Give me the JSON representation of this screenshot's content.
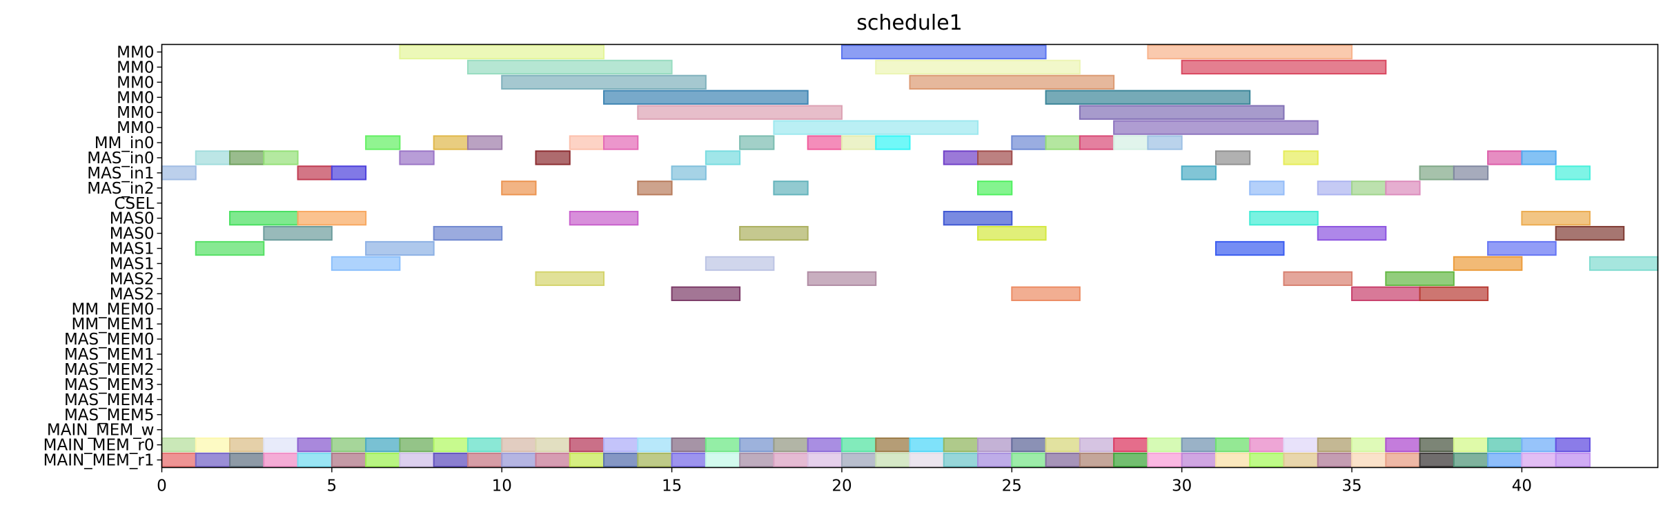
{
  "chart_data": {
    "type": "gantt",
    "title": "schedule1",
    "xlabel": "",
    "ylabel": "",
    "xlim": [
      0,
      44
    ],
    "xticks": [
      0,
      5,
      10,
      15,
      20,
      25,
      30,
      35,
      40
    ],
    "grid": false,
    "rows": [
      "MM0",
      "MM0",
      "MM0",
      "MM0",
      "MM0",
      "MM0",
      "MM_in0",
      "MAS_in0",
      "MAS_in1",
      "MAS_in2",
      "CSEL",
      "MAS0",
      "MAS0",
      "MAS1",
      "MAS1",
      "MAS2",
      "MAS2",
      "MM_MEM0",
      "MM_MEM1",
      "MAS_MEM0",
      "MAS_MEM1",
      "MAS_MEM2",
      "MAS_MEM3",
      "MAS_MEM4",
      "MAS_MEM5",
      "MAIN_MEM_w",
      "MAIN_MEM_r0",
      "MAIN_MEM_r1"
    ],
    "tasks": [
      {
        "row": 0,
        "start": 7,
        "end": 13,
        "color": "#e4f59a"
      },
      {
        "row": 0,
        "start": 20,
        "end": 26,
        "color": "#5b75f0"
      },
      {
        "row": 0,
        "start": 29,
        "end": 35,
        "color": "#f8b48c"
      },
      {
        "row": 1,
        "start": 9,
        "end": 15,
        "color": "#97dcc0"
      },
      {
        "row": 1,
        "start": 21,
        "end": 27,
        "color": "#ecf5b4"
      },
      {
        "row": 1,
        "start": 30,
        "end": 36,
        "color": "#d94961"
      },
      {
        "row": 2,
        "start": 10,
        "end": 16,
        "color": "#7fb1bc"
      },
      {
        "row": 2,
        "start": 22,
        "end": 28,
        "color": "#dc9a72"
      },
      {
        "row": 3,
        "start": 13,
        "end": 19,
        "color": "#3f85b3"
      },
      {
        "row": 3,
        "start": 26,
        "end": 32,
        "color": "#3c8699"
      },
      {
        "row": 4,
        "start": 14,
        "end": 20,
        "color": "#dda2b4"
      },
      {
        "row": 4,
        "start": 27,
        "end": 33,
        "color": "#8270b6"
      },
      {
        "row": 5,
        "start": 18,
        "end": 24,
        "color": "#9de8ef"
      },
      {
        "row": 5,
        "start": 28,
        "end": 34,
        "color": "#8d74bf"
      },
      {
        "row": 6,
        "start": 6,
        "end": 7,
        "color": "#63f063"
      },
      {
        "row": 6,
        "start": 8,
        "end": 9,
        "color": "#e0b84a"
      },
      {
        "row": 6,
        "start": 9,
        "end": 10,
        "color": "#9c7aa8"
      },
      {
        "row": 6,
        "start": 12,
        "end": 13,
        "color": "#fcc0ac"
      },
      {
        "row": 6,
        "start": 13,
        "end": 14,
        "color": "#e46ab6"
      },
      {
        "row": 6,
        "start": 17,
        "end": 18,
        "color": "#7abcb0"
      },
      {
        "row": 6,
        "start": 19,
        "end": 20,
        "color": "#f05c9c"
      },
      {
        "row": 6,
        "start": 20,
        "end": 21,
        "color": "#e4ecb0"
      },
      {
        "row": 6,
        "start": 21,
        "end": 22,
        "color": "#34f5f5"
      },
      {
        "row": 6,
        "start": 25,
        "end": 26,
        "color": "#6f8ad4"
      },
      {
        "row": 6,
        "start": 26,
        "end": 27,
        "color": "#94dc78"
      },
      {
        "row": 6,
        "start": 27,
        "end": 28,
        "color": "#d94a76"
      },
      {
        "row": 6,
        "start": 28,
        "end": 29,
        "color": "#d4f0e4"
      },
      {
        "row": 6,
        "start": 29,
        "end": 30,
        "color": "#9cc0e4"
      },
      {
        "row": 7,
        "start": 1,
        "end": 2,
        "color": "#a0dcdc"
      },
      {
        "row": 7,
        "start": 2,
        "end": 3,
        "color": "#6ea05c"
      },
      {
        "row": 7,
        "start": 3,
        "end": 4,
        "color": "#94e078"
      },
      {
        "row": 7,
        "start": 7,
        "end": 8,
        "color": "#9a74c6"
      },
      {
        "row": 7,
        "start": 11,
        "end": 12,
        "color": "#8c2c30"
      },
      {
        "row": 7,
        "start": 16,
        "end": 17,
        "color": "#78dce0"
      },
      {
        "row": 7,
        "start": 23,
        "end": 24,
        "color": "#7040c8"
      },
      {
        "row": 7,
        "start": 24,
        "end": 25,
        "color": "#a04c4c"
      },
      {
        "row": 7,
        "start": 31,
        "end": 32,
        "color": "#909090"
      },
      {
        "row": 7,
        "start": 33,
        "end": 34,
        "color": "#e6ec58"
      },
      {
        "row": 7,
        "start": 39,
        "end": 40,
        "color": "#dc5ca8"
      },
      {
        "row": 7,
        "start": 40,
        "end": 41,
        "color": "#50a8f0"
      },
      {
        "row": 8,
        "start": 0,
        "end": 1,
        "color": "#a0bce4"
      },
      {
        "row": 8,
        "start": 4,
        "end": 5,
        "color": "#c03c52"
      },
      {
        "row": 8,
        "start": 5,
        "end": 6,
        "color": "#4c40dc"
      },
      {
        "row": 8,
        "start": 15,
        "end": 16,
        "color": "#80c0dc"
      },
      {
        "row": 8,
        "start": 30,
        "end": 31,
        "color": "#4cacc4"
      },
      {
        "row": 8,
        "start": 37,
        "end": 38,
        "color": "#80a888"
      },
      {
        "row": 8,
        "start": 38,
        "end": 39,
        "color": "#8088a0"
      },
      {
        "row": 8,
        "start": 41,
        "end": 42,
        "color": "#48f0dc"
      },
      {
        "row": 9,
        "start": 10,
        "end": 11,
        "color": "#ec9450"
      },
      {
        "row": 9,
        "start": 14,
        "end": 15,
        "color": "#b87c5c"
      },
      {
        "row": 9,
        "start": 18,
        "end": 19,
        "color": "#64b4bc"
      },
      {
        "row": 9,
        "start": 24,
        "end": 25,
        "color": "#50f060"
      },
      {
        "row": 9,
        "start": 32,
        "end": 33,
        "color": "#94bcf8"
      },
      {
        "row": 9,
        "start": 34,
        "end": 35,
        "color": "#acb4f0"
      },
      {
        "row": 9,
        "start": 35,
        "end": 36,
        "color": "#a0d48c"
      },
      {
        "row": 9,
        "start": 36,
        "end": 37,
        "color": "#dc8cbc"
      },
      {
        "row": 11,
        "start": 2,
        "end": 4,
        "color": "#48e060"
      },
      {
        "row": 11,
        "start": 4,
        "end": 6,
        "color": "#f8a860"
      },
      {
        "row": 11,
        "start": 12,
        "end": 14,
        "color": "#c860cc"
      },
      {
        "row": 11,
        "start": 23,
        "end": 25,
        "color": "#4058d4"
      },
      {
        "row": 11,
        "start": 32,
        "end": 34,
        "color": "#40ecd4"
      },
      {
        "row": 11,
        "start": 40,
        "end": 42,
        "color": "#ecac50"
      },
      {
        "row": 12,
        "start": 3,
        "end": 5,
        "color": "#6c9c9c"
      },
      {
        "row": 12,
        "start": 8,
        "end": 10,
        "color": "#7088d0"
      },
      {
        "row": 12,
        "start": 17,
        "end": 19,
        "color": "#acb060"
      },
      {
        "row": 12,
        "start": 24,
        "end": 26,
        "color": "#d4e840"
      },
      {
        "row": 12,
        "start": 34,
        "end": 36,
        "color": "#8c54e0"
      },
      {
        "row": 12,
        "start": 41,
        "end": 43,
        "color": "#803c34"
      },
      {
        "row": 13,
        "start": 1,
        "end": 3,
        "color": "#54e064"
      },
      {
        "row": 13,
        "start": 6,
        "end": 8,
        "color": "#8cb0e4"
      },
      {
        "row": 13,
        "start": 31,
        "end": 33,
        "color": "#3a5cf0"
      },
      {
        "row": 13,
        "start": 39,
        "end": 41,
        "color": "#6474f4"
      },
      {
        "row": 14,
        "start": 5,
        "end": 7,
        "color": "#8cc0fc"
      },
      {
        "row": 14,
        "start": 16,
        "end": 18,
        "color": "#bcc4e4"
      },
      {
        "row": 14,
        "start": 38,
        "end": 40,
        "color": "#ec9c3c"
      },
      {
        "row": 14,
        "start": 42,
        "end": 44,
        "color": "#80dcd0"
      },
      {
        "row": 15,
        "start": 11,
        "end": 13,
        "color": "#d4d46c"
      },
      {
        "row": 15,
        "start": 19,
        "end": 21,
        "color": "#b08ca4"
      },
      {
        "row": 15,
        "start": 33,
        "end": 35,
        "color": "#d88070"
      },
      {
        "row": 15,
        "start": 36,
        "end": 38,
        "color": "#64b844"
      },
      {
        "row": 16,
        "start": 15,
        "end": 17,
        "color": "#7c3c68"
      },
      {
        "row": 16,
        "start": 25,
        "end": 27,
        "color": "#ec8c64"
      },
      {
        "row": 16,
        "start": 35,
        "end": 37,
        "color": "#c8406c"
      },
      {
        "row": 16,
        "start": 37,
        "end": 39,
        "color": "#b83c34"
      }
    ],
    "cell_rows": [
      {
        "row": 26,
        "colors": [
          "#b8e0a0",
          "#fcf8b0",
          "#dcc08c",
          "#e0e4f8",
          "#8c60d0",
          "#88c878",
          "#4cacc4",
          "#70b060",
          "#b4f868",
          "#64e0c8",
          "#d8bcac",
          "#d8d4ac",
          "#b84060",
          "#b0b0f8",
          "#a0e0f8",
          "#887088",
          "#70e888",
          "#7c98d0",
          "#989c88",
          "#8c68d8",
          "#58e4a4",
          "#9c7c48",
          "#54d8f8",
          "#94b864",
          "#b098c8",
          "#646c9c",
          "#d8d880",
          "#c8b0d8",
          "#dc3c64",
          "#c8f89c",
          "#7898b4",
          "#70e070",
          "#e888c8",
          "#e0d8f8",
          "#b0a070",
          "#d4f8a0",
          "#b050d0",
          "#505c48",
          "#d4f88c",
          "#54c8b0",
          "#74b0f8",
          "#6450e0"
        ]
      },
      {
        "row": 27,
        "colors": [
          "#e87070",
          "#7868c8",
          "#687888",
          "#f090c8",
          "#78dcf0",
          "#b07888",
          "#a0f058",
          "#d0c0e8",
          "#6454c0",
          "#c87c88",
          "#9c9cd8",
          "#c87c98",
          "#c8e858",
          "#5c74b0",
          "#a8b860",
          "#7c70e8",
          "#c4f8e8",
          "#a890a8",
          "#dca4c4",
          "#dcc0e4",
          "#a0a8bc",
          "#c8e0b4",
          "#e4dce8",
          "#74c8cc",
          "#a890e0",
          "#7ce48c",
          "#8870a0",
          "#b08878",
          "#44a840",
          "#f8a0d8",
          "#c088d8",
          "#f8e0a8",
          "#a8f860",
          "#e0c890",
          "#b07c98",
          "#f8d8b8",
          "#e8a088",
          "#403c3c",
          "#54987c",
          "#68a8f8",
          "#d8a8f0",
          "#c090f0"
        ]
      }
    ]
  }
}
